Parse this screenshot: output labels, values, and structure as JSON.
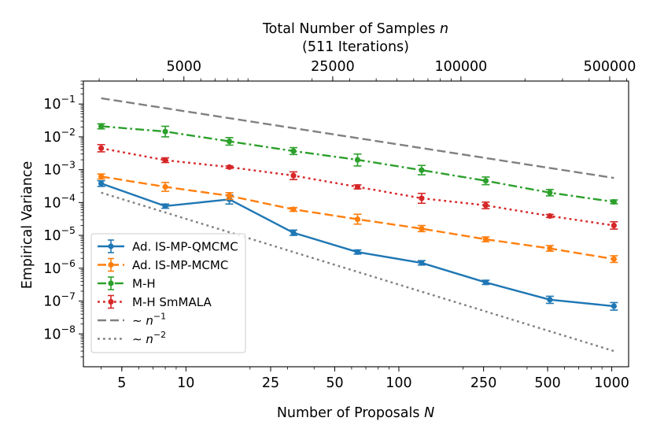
{
  "chart_data": {
    "type": "line",
    "title": "",
    "xlabel": "Number of Proposals N",
    "ylabel": "Empirical Variance",
    "top_xlabel": {
      "line1": "Total Number of Samples n",
      "line2": "(511 Iterations)"
    },
    "xscale": "log",
    "yscale": "log",
    "xlim": [
      3.3,
      1200
    ],
    "ylim": [
      1e-09,
      0.5
    ],
    "x": [
      4,
      8,
      16,
      32,
      64,
      128,
      256,
      512,
      1024
    ],
    "xticks": [
      {
        "value": 5,
        "label": "5"
      },
      {
        "value": 10,
        "label": "10"
      },
      {
        "value": 25,
        "label": "25"
      },
      {
        "value": 50,
        "label": "50"
      },
      {
        "value": 100,
        "label": "100"
      },
      {
        "value": 250,
        "label": "250"
      },
      {
        "value": 500,
        "label": "500"
      },
      {
        "value": 1000,
        "label": "1000"
      }
    ],
    "yticks": [
      {
        "value": 1e-08,
        "mant": "10",
        "exp": "−8"
      },
      {
        "value": 1e-07,
        "mant": "10",
        "exp": "−7"
      },
      {
        "value": 1e-06,
        "mant": "10",
        "exp": "−6"
      },
      {
        "value": 1e-05,
        "mant": "10",
        "exp": "−5"
      },
      {
        "value": 0.0001,
        "mant": "10",
        "exp": "−4"
      },
      {
        "value": 0.001,
        "mant": "10",
        "exp": "−3"
      },
      {
        "value": 0.01,
        "mant": "10",
        "exp": "−2"
      },
      {
        "value": 0.1,
        "mant": "10",
        "exp": "−1"
      }
    ],
    "top_ticks": [
      {
        "value": 5000,
        "label": "5000"
      },
      {
        "value": 25000,
        "label": "25000"
      },
      {
        "value": 100000,
        "label": "100000"
      },
      {
        "value": 500000,
        "label": "500000"
      }
    ],
    "samples_per_proposal": 511,
    "series": [
      {
        "name": "Ad. IS-MP-QMCMC",
        "color": "#1f77b4",
        "dash": "solid",
        "marker": true,
        "values": [
          0.00038,
          7.8e-05,
          0.000125,
          1.2e-05,
          3.1e-06,
          1.45e-06,
          3.7e-07,
          1.1e-07,
          7e-08
        ],
        "errors": [
          [
            0.00031,
            0.00046
          ],
          [
            6.7e-05,
            9e-05
          ],
          [
            9e-05,
            0.00017
          ],
          [
            1e-05,
            1.45e-05
          ],
          [
            2.7e-06,
            3.6e-06
          ],
          [
            1.25e-06,
            1.7e-06
          ],
          [
            3.2e-07,
            4.3e-07
          ],
          [
            8.5e-08,
            1.4e-07
          ],
          [
            5.3e-08,
            9e-08
          ]
        ]
      },
      {
        "name": "Ad. IS-MP-MCMC",
        "color": "#ff7f0e",
        "dash": "dashed",
        "marker": true,
        "values": [
          0.00062,
          0.0003,
          0.00016,
          6.2e-05,
          3.1e-05,
          1.6e-05,
          7.6e-06,
          4e-06,
          1.9e-06
        ],
        "errors": [
          [
            0.00052,
            0.00074
          ],
          [
            0.00022,
            0.00041
          ],
          [
            0.000125,
            0.0002
          ],
          [
            5.4e-05,
            7e-05
          ],
          [
            2.2e-05,
            4.4e-05
          ],
          [
            1.3e-05,
            2e-05
          ],
          [
            6.4e-06,
            9e-06
          ],
          [
            3.3e-06,
            4.9e-06
          ],
          [
            1.5e-06,
            2.4e-06
          ]
        ]
      },
      {
        "name": "M-H",
        "color": "#2ca02c",
        "dash": "dashdot",
        "marker": true,
        "values": [
          0.021,
          0.0145,
          0.0073,
          0.0037,
          0.002,
          0.00097,
          0.00046,
          0.0002,
          0.000105
        ],
        "errors": [
          [
            0.0175,
            0.025
          ],
          [
            0.01,
            0.021
          ],
          [
            0.0056,
            0.0095
          ],
          [
            0.0029,
            0.0047
          ],
          [
            0.0013,
            0.003
          ],
          [
            0.0007,
            0.00135
          ],
          [
            0.00035,
            0.0006
          ],
          [
            0.00016,
            0.00025
          ],
          [
            9.2e-05,
            0.00012
          ]
        ]
      },
      {
        "name": "M-H SmMALA",
        "color": "#d62728",
        "dash": "dotted",
        "marker": true,
        "values": [
          0.0045,
          0.00195,
          0.0012,
          0.00066,
          0.0003,
          0.000135,
          8.2e-05,
          3.9e-05,
          2e-05
        ],
        "errors": [
          [
            0.0035,
            0.0058
          ],
          [
            0.00165,
            0.0023
          ],
          [
            0.0011,
            0.0013
          ],
          [
            0.0005,
            0.00086
          ],
          [
            0.00026,
            0.000345
          ],
          [
            9.5e-05,
            0.00019
          ],
          [
            6.5e-05,
            0.000103
          ],
          [
            3.5e-05,
            4.35e-05
          ],
          [
            1.55e-05,
            2.6e-05
          ]
        ]
      },
      {
        "name": "~ n^-1",
        "label_prefix": "∼ ",
        "label_var": "n",
        "label_exp": "−1",
        "color": "#808080",
        "dash": "dashed",
        "marker": false,
        "values": [
          0.15,
          0.00056
        ],
        "x": [
          4,
          1024
        ]
      },
      {
        "name": "~ n^-2",
        "label_prefix": "∼ ",
        "label_var": "n",
        "label_exp": "−2",
        "color": "#808080",
        "dash": "dotted",
        "marker": false,
        "values": [
          0.0002,
          3e-09
        ],
        "x": [
          4,
          1024
        ]
      }
    ],
    "legend": {
      "location": "lower-left"
    }
  }
}
